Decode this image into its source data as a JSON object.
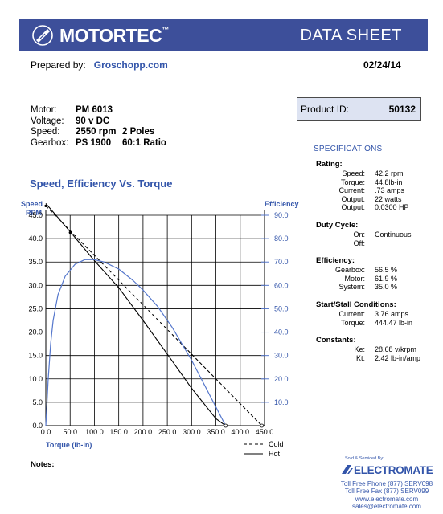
{
  "header": {
    "brand": "MOTORTEC",
    "brand_mark": "™",
    "title": "DATA SHEET"
  },
  "prepared": {
    "label": "Prepared by:",
    "who": "Groschopp.com",
    "date": "02/24/14"
  },
  "motor": {
    "rows": [
      {
        "label": "Motor:",
        "v1": "PM  6013",
        "v2": ""
      },
      {
        "label": "Voltage:",
        "v1": "90 v DC",
        "v2": ""
      },
      {
        "label": "Speed:",
        "v1": "2550 rpm",
        "v2": "2 Poles"
      },
      {
        "label": "Gearbox:",
        "v1": "PS 1900",
        "v2": "60:1 Ratio"
      }
    ]
  },
  "product": {
    "label": "Product ID:",
    "value": "50132"
  },
  "specifications": {
    "title": "SPECIFICATIONS",
    "groups": [
      {
        "title": "Rating:",
        "rows": [
          {
            "label": "Speed:",
            "value": "42.2 rpm"
          },
          {
            "label": "Torque:",
            "value": "44.8lb-in"
          },
          {
            "label": "Current:",
            "value": ".73 amps"
          },
          {
            "label": "Output:",
            "value": "22 watts"
          },
          {
            "label": "Output:",
            "value": "0.0300 HP"
          }
        ]
      },
      {
        "title": "Duty Cycle:",
        "rows": [
          {
            "label": "On:",
            "value": "Continuous"
          },
          {
            "label": "Off:",
            "value": ""
          }
        ]
      },
      {
        "title": "Efficiency:",
        "rows": [
          {
            "label": "Gearbox:",
            "value": "56.5 %"
          },
          {
            "label": "Motor:",
            "value": "61.9 %"
          },
          {
            "label": "System:",
            "value": "35.0 %"
          }
        ]
      },
      {
        "title": "Start/Stall Conditions:",
        "rows": [
          {
            "label": "Current:",
            "value": "3.76 amps"
          },
          {
            "label": "Torque:",
            "value": "444.47 lb-in"
          }
        ]
      },
      {
        "title": "Constants:",
        "rows": [
          {
            "label": "Ke:",
            "value": "28.68 v/krpm"
          },
          {
            "label": "Kt:",
            "value": "2.42 lb-in/amp"
          }
        ]
      }
    ]
  },
  "notes_label": "Notes:",
  "distributor": {
    "sold_by": "Sold & Serviced By:",
    "name": "ELECTROMATE",
    "lines": [
      "Toll Free Phone  (877) SERV098",
      "Toll Free Fax  (877) SERV099",
      "www.electromate.com",
      "sales@electromate.com"
    ]
  },
  "chart_data": {
    "type": "line",
    "title": "Speed, Efficiency Vs. Torque",
    "xlabel": "Torque  (lb-in)",
    "ylabel_left": [
      "Speed",
      "RPM"
    ],
    "ylabel_right": "Efficiency",
    "xlim": [
      0,
      450
    ],
    "ylim_left": [
      0,
      45
    ],
    "ylim_right": [
      0,
      90
    ],
    "x_ticks": [
      "0.0",
      "50.0",
      "100.0",
      "150.0",
      "200.0",
      "250.0",
      "300.0",
      "350.0",
      "400.0",
      "450.0"
    ],
    "y_left_ticks": [
      "0.0",
      "5.0",
      "10.0",
      "15.0",
      "20.0",
      "25.0",
      "30.0",
      "35.0",
      "40.0",
      "45.0"
    ],
    "y_right_ticks": [
      "10.0",
      "20.0",
      "30.0",
      "40.0",
      "50.0",
      "60.0",
      "70.0",
      "80.0",
      "90.0"
    ],
    "grid": true,
    "legend": {
      "position": "bottom-right",
      "entries": [
        {
          "name": "Cold",
          "style": "dashed"
        },
        {
          "name": "Hot",
          "style": "solid"
        }
      ]
    },
    "series": [
      {
        "name": "Cold",
        "axis": "left",
        "style": "dashed",
        "color": "#000000",
        "x": [
          0,
          444.5
        ],
        "y": [
          47.0,
          0
        ]
      },
      {
        "name": "Hot",
        "axis": "left",
        "style": "solid",
        "color": "#000000",
        "x": [
          0,
          50,
          100,
          150,
          200,
          250,
          300,
          350,
          370
        ],
        "y": [
          47.5,
          41.5,
          35.3,
          29.5,
          22.5,
          15.3,
          8.0,
          1.5,
          0
        ]
      },
      {
        "name": "Efficiency",
        "axis": "right",
        "style": "solid",
        "color": "#5577cc",
        "x": [
          0,
          5,
          10,
          15,
          25,
          40,
          60,
          80,
          100,
          120,
          150,
          180,
          200,
          230,
          260,
          300,
          340,
          370
        ],
        "y": [
          0,
          20,
          35,
          45,
          56,
          64,
          69,
          71,
          71,
          70,
          67,
          62,
          58,
          51,
          42,
          28,
          12,
          0
        ]
      }
    ]
  }
}
